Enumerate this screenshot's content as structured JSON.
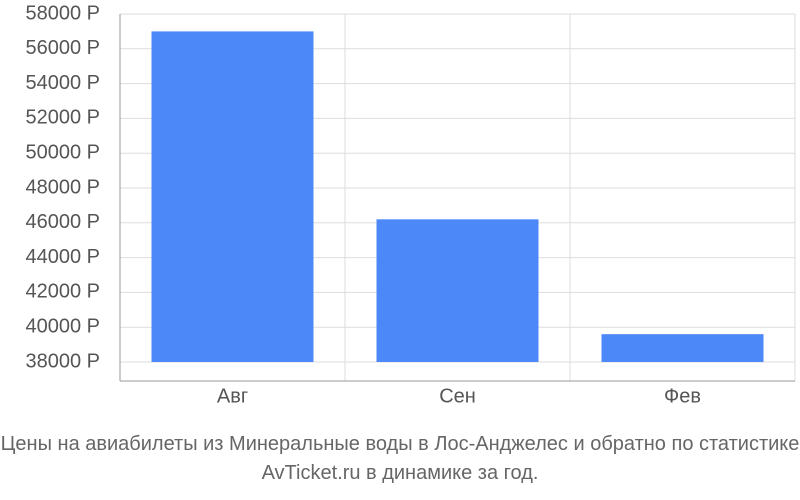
{
  "chart_data": {
    "type": "bar",
    "title": "Цены на авиабилеты из Минеральные воды в Лос-Анджелес и обратно по статистике AvTicket.ru в динамике за год.",
    "categories": [
      "Авг",
      "Сен",
      "Фев"
    ],
    "values": [
      57000,
      46200,
      39600
    ],
    "color": "#4d88f9",
    "ylim": [
      38000,
      58000
    ],
    "yticks": [
      {
        "value": 38000,
        "label": "38000 Р"
      },
      {
        "value": 40000,
        "label": "40000 Р"
      },
      {
        "value": 42000,
        "label": "42000 Р"
      },
      {
        "value": 44000,
        "label": "44000 Р"
      },
      {
        "value": 46000,
        "label": "46000 Р"
      },
      {
        "value": 48000,
        "label": "48000 Р"
      },
      {
        "value": 50000,
        "label": "50000 Р"
      },
      {
        "value": 52000,
        "label": "52000 Р"
      },
      {
        "value": 54000,
        "label": "54000 Р"
      },
      {
        "value": 56000,
        "label": "56000 Р"
      },
      {
        "value": 58000,
        "label": "58000 Р"
      }
    ],
    "grid": true
  }
}
